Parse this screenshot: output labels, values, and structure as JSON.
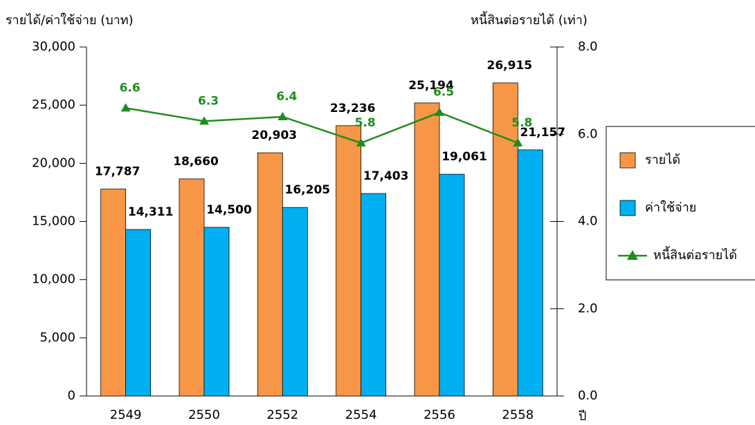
{
  "chart_data": {
    "type": "bar",
    "y_label": "รายได้/ค่าใช้จ่าย (บาท)",
    "y2_label": "หนี้สินต่อรายได้ (เท่า)",
    "x_label": "ปี",
    "categories": [
      "2549",
      "2550",
      "2552",
      "2554",
      "2556",
      "2558"
    ],
    "series": [
      {
        "name": "รายได้",
        "color": "#f79646",
        "values": [
          17787,
          18660,
          20903,
          23236,
          25194,
          26915
        ],
        "value_labels": [
          "17,787",
          "18,660",
          "20,903",
          "23,236",
          "25,194",
          "26,915"
        ]
      },
      {
        "name": "ค่าใช้จ่าย",
        "color": "#00b0f0",
        "values": [
          14311,
          14500,
          16205,
          17403,
          19061,
          21157
        ],
        "value_labels": [
          "14,311",
          "14,500",
          "16,205",
          "17,403",
          "19,061",
          "21,157"
        ]
      },
      {
        "name": "หนี้สินต่อรายได้",
        "type": "line",
        "axis": "y2",
        "color": "#1e8c1e",
        "values": [
          6.6,
          6.3,
          6.4,
          5.8,
          6.5,
          5.8
        ]
      }
    ],
    "ylim": [
      0,
      30000
    ],
    "yticks": [
      0,
      {
        "value": 5000,
        "label": "5,000"
      },
      {
        "value": 10000,
        "label": "10,000"
      },
      {
        "value": 15000,
        "label": "15,000"
      },
      {
        "value": 20000,
        "label": "20,000"
      },
      {
        "value": 25000,
        "label": "25,000"
      },
      {
        "value": 30000,
        "label": "30,000"
      }
    ],
    "y2lim": [
      0,
      8
    ],
    "y2ticks": [
      {
        "value": 0,
        "label": "0.0"
      },
      {
        "value": 2,
        "label": "2.0"
      },
      {
        "value": 4,
        "label": "4.0"
      },
      {
        "value": 6,
        "label": "6.0"
      },
      {
        "value": 8,
        "label": "8.0"
      }
    ],
    "legend": "right"
  }
}
